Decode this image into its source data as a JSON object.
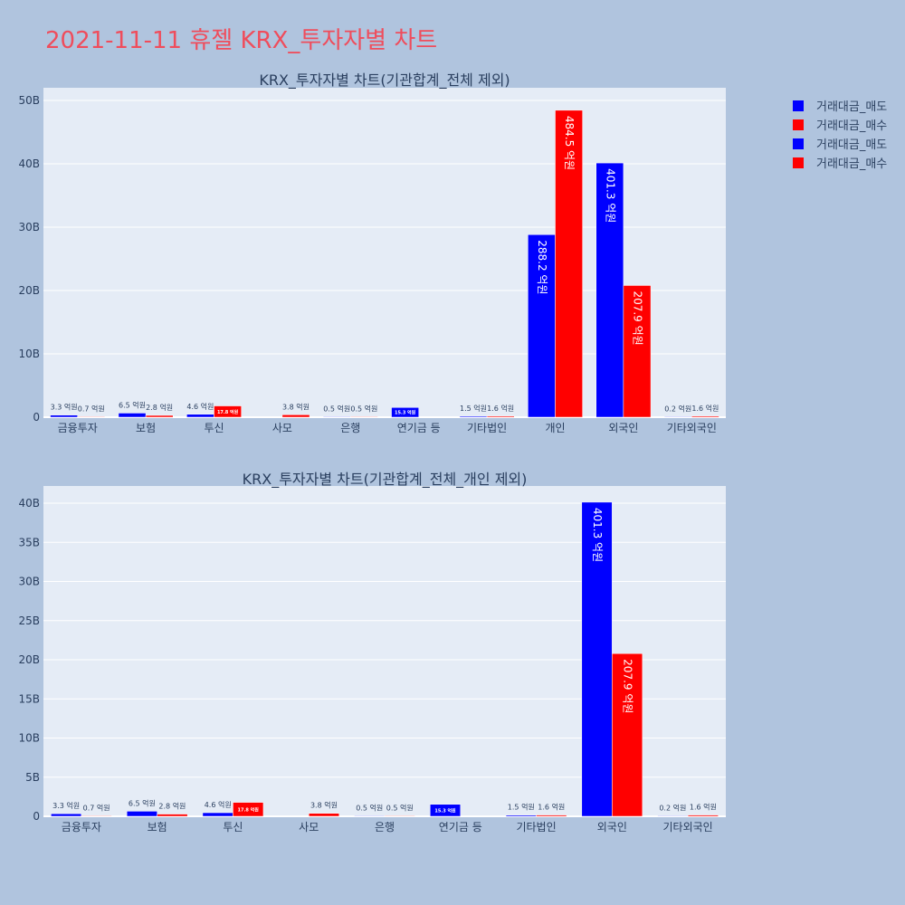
{
  "page_title": "2021-11-11 휴젤 KRX_투자자별 차트",
  "legend": [
    {
      "label": "거래대금_매도",
      "color": "#0000ff"
    },
    {
      "label": "거래대금_매수",
      "color": "#ff0000"
    },
    {
      "label": "거래대금_매도",
      "color": "#0000ff"
    },
    {
      "label": "거래대금_매수",
      "color": "#ff0000"
    }
  ],
  "chart_data": [
    {
      "type": "bar",
      "title": "KRX_투자자별 차트(기관합계_전체 제외)",
      "categories": [
        "금융투자",
        "보험",
        "투신",
        "사모",
        "은행",
        "연기금 등",
        "기타법인",
        "개인",
        "외국인",
        "기타외국인"
      ],
      "yticks": [
        "0",
        "10B",
        "20B",
        "30B",
        "40B",
        "50B"
      ],
      "ylim": [
        0,
        52
      ],
      "series": [
        {
          "name": "거래대금_매도",
          "color": "#0000ff",
          "values": [
            0.33,
            0.65,
            0.46,
            null,
            0.05,
            1.53,
            0.15,
            28.82,
            40.13,
            0.02
          ],
          "labels": [
            "3.3 억원",
            "6.5 억원",
            "4.6 억원",
            "",
            "0.5 억원",
            "15.3 억원",
            "1.5 억원",
            "288.2 억원",
            "401.3 억원",
            "0.2 억원"
          ]
        },
        {
          "name": "거래대금_매수",
          "color": "#ff0000",
          "values": [
            0.07,
            0.28,
            1.78,
            0.38,
            0.05,
            null,
            0.16,
            48.45,
            20.79,
            0.16
          ],
          "labels": [
            "0.7 억원",
            "2.8 억원",
            "17.8 억원",
            "3.8 억원",
            "0.5 억원",
            "",
            "1.6 억원",
            "484.5 억원",
            "207.9 억원",
            "1.6 억원"
          ]
        }
      ]
    },
    {
      "type": "bar",
      "title": "KRX_투자자별 차트(기관합계_전체_개인 제외)",
      "categories": [
        "금융투자",
        "보험",
        "투신",
        "사모",
        "은행",
        "연기금 등",
        "기타법인",
        "외국인",
        "기타외국인"
      ],
      "yticks": [
        "0",
        "5B",
        "10B",
        "15B",
        "20B",
        "25B",
        "30B",
        "35B",
        "40B"
      ],
      "ylim": [
        0,
        42.2
      ],
      "series": [
        {
          "name": "거래대금_매도",
          "color": "#0000ff",
          "values": [
            0.33,
            0.65,
            0.46,
            null,
            0.05,
            1.53,
            0.15,
            40.13,
            0.02
          ],
          "labels": [
            "3.3 억원",
            "6.5 억원",
            "4.6 억원",
            "",
            "0.5 억원",
            "15.3 억원",
            "1.5 억원",
            "401.3 억원",
            "0.2 억원"
          ]
        },
        {
          "name": "거래대금_매수",
          "color": "#ff0000",
          "values": [
            0.07,
            0.28,
            1.78,
            0.38,
            0.05,
            null,
            0.16,
            20.79,
            0.16
          ],
          "labels": [
            "0.7 억원",
            "2.8 억원",
            "17.8 억원",
            "3.8 억원",
            "0.5 억원",
            "",
            "1.6 억원",
            "207.9 억원",
            "1.6 억원"
          ]
        }
      ]
    }
  ]
}
